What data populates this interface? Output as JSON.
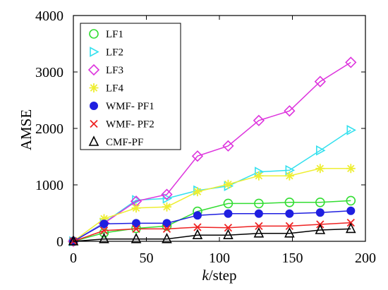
{
  "chart_data": {
    "type": "line",
    "title": "",
    "xlabel": {
      "italic": "k",
      "rest": "/step"
    },
    "ylabel": "AMSE",
    "xlim": [
      0,
      200
    ],
    "ylim": [
      0,
      4000
    ],
    "xticks": [
      0,
      50,
      100,
      150,
      200
    ],
    "yticks": [
      0,
      1000,
      2000,
      3000,
      4000
    ],
    "grid": false,
    "legend_position": "top-left",
    "x": [
      0,
      21,
      43,
      64,
      85,
      106,
      127,
      148,
      169,
      190
    ],
    "series": [
      {
        "name": "LF1",
        "color": "#33dd33",
        "marker": "circle-open",
        "values": [
          0,
          150,
          230,
          270,
          530,
          670,
          670,
          690,
          690,
          720
        ]
      },
      {
        "name": "LF2",
        "color": "#33e0ee",
        "marker": "triangle-right-open",
        "values": [
          0,
          330,
          730,
          760,
          900,
          980,
          1230,
          1260,
          1610,
          1970
        ]
      },
      {
        "name": "LF3",
        "color": "#dd33dd",
        "marker": "diamond-open",
        "values": [
          0,
          320,
          710,
          830,
          1510,
          1690,
          2140,
          2310,
          2830,
          3170
        ]
      },
      {
        "name": "LF4",
        "color": "#eeee33",
        "marker": "asterisk",
        "values": [
          0,
          400,
          590,
          610,
          880,
          1010,
          1160,
          1160,
          1290,
          1290
        ]
      },
      {
        "name": "WMF- PF1",
        "color": "#1f1fe0",
        "marker": "circle-filled",
        "values": [
          0,
          310,
          320,
          320,
          460,
          490,
          490,
          490,
          510,
          540
        ]
      },
      {
        "name": "WMF- PF2",
        "color": "#ee2222",
        "marker": "cross",
        "values": [
          0,
          190,
          220,
          220,
          250,
          240,
          270,
          270,
          300,
          330
        ]
      },
      {
        "name": "CMF-PF",
        "color": "#000000",
        "marker": "triangle-up-open",
        "values": [
          0,
          40,
          40,
          40,
          110,
          110,
          140,
          140,
          200,
          220
        ]
      }
    ]
  }
}
